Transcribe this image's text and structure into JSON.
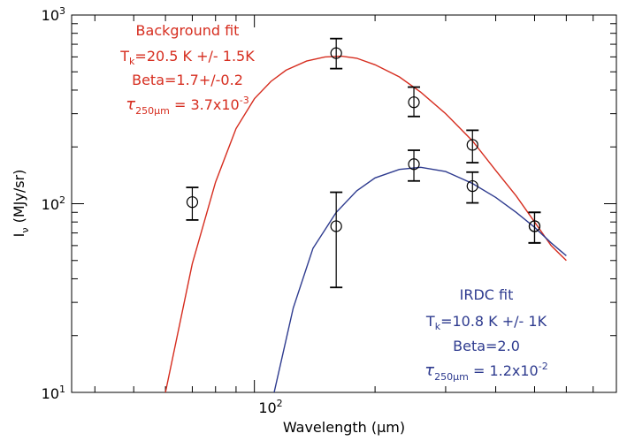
{
  "chart_data": {
    "type": "scatter",
    "title": "",
    "xlabel": {
      "base": "Wavelength (",
      "unit": "μm",
      "tail": ")"
    },
    "ylabel": {
      "main": "I",
      "sub": "ν",
      "tail": " (MJy/sr)"
    },
    "xscale": "log",
    "yscale": "log",
    "xlim": [
      35,
      800
    ],
    "ylim": [
      10,
      1000
    ],
    "x_ticks": [
      {
        "value": 100,
        "base": "10",
        "exp": "2"
      }
    ],
    "y_ticks": [
      {
        "value": 10,
        "base": "10",
        "exp": "1"
      },
      {
        "value": 100,
        "base": "10",
        "exp": "2"
      },
      {
        "value": 1000,
        "base": "10",
        "exp": "3"
      }
    ],
    "series": [
      {
        "id": "background",
        "color": "#d62d1f",
        "points": [
          {
            "x": 70,
            "y": 102,
            "ylo": 82,
            "yhi": 122
          },
          {
            "x": 160,
            "y": 628,
            "ylo": 520,
            "yhi": 750
          },
          {
            "x": 250,
            "y": 345,
            "ylo": 290,
            "yhi": 415
          },
          {
            "x": 350,
            "y": 205,
            "ylo": 165,
            "yhi": 245
          },
          {
            "x": 500,
            "y": 76,
            "ylo": 62,
            "yhi": 90
          }
        ],
        "curve": [
          [
            60,
            10
          ],
          [
            70,
            48
          ],
          [
            80,
            130
          ],
          [
            90,
            250
          ],
          [
            100,
            360
          ],
          [
            110,
            445
          ],
          [
            120,
            510
          ],
          [
            135,
            570
          ],
          [
            150,
            600
          ],
          [
            165,
            605
          ],
          [
            180,
            590
          ],
          [
            200,
            545
          ],
          [
            230,
            470
          ],
          [
            260,
            390
          ],
          [
            300,
            300
          ],
          [
            350,
            215
          ],
          [
            400,
            150
          ],
          [
            450,
            110
          ],
          [
            500,
            80
          ],
          [
            550,
            60
          ],
          [
            600,
            50
          ]
        ]
      },
      {
        "id": "irdc",
        "color": "#2e3b8f",
        "points": [
          {
            "x": 160,
            "y": 76,
            "ylo": 36,
            "yhi": 115
          },
          {
            "x": 250,
            "y": 162,
            "ylo": 132,
            "yhi": 192
          },
          {
            "x": 350,
            "y": 124,
            "ylo": 101,
            "yhi": 147
          },
          {
            "x": 500,
            "y": 76,
            "ylo": 62,
            "yhi": 90
          }
        ],
        "curve": [
          [
            112,
            10
          ],
          [
            125,
            28
          ],
          [
            140,
            58
          ],
          [
            160,
            90
          ],
          [
            180,
            117
          ],
          [
            200,
            137
          ],
          [
            230,
            152
          ],
          [
            260,
            156
          ],
          [
            300,
            148
          ],
          [
            350,
            128
          ],
          [
            400,
            108
          ],
          [
            450,
            90
          ],
          [
            500,
            75
          ],
          [
            550,
            62
          ],
          [
            600,
            53
          ]
        ]
      }
    ],
    "annotations": [
      {
        "id": "background-fit",
        "color": "#d62d1f",
        "title": "Background fit",
        "temp": {
          "main": "T",
          "sub": "k",
          "rest": "=20.5 K +/- 1.5K"
        },
        "beta": "Beta=1.7+/-0.2",
        "tau": {
          "sym": "τ",
          "sub": "250μm",
          "rest": " = 3.7x10",
          "exp": "-3"
        }
      },
      {
        "id": "irdc-fit",
        "color": "#2e3b8f",
        "title": "IRDC fit",
        "temp": {
          "main": "T",
          "sub": "k",
          "rest": "=10.8 K +/- 1K"
        },
        "beta": "Beta=2.0",
        "tau": {
          "sym": "τ",
          "sub": "250μm",
          "rest": " = 1.2x10",
          "exp": "-2"
        }
      }
    ]
  }
}
